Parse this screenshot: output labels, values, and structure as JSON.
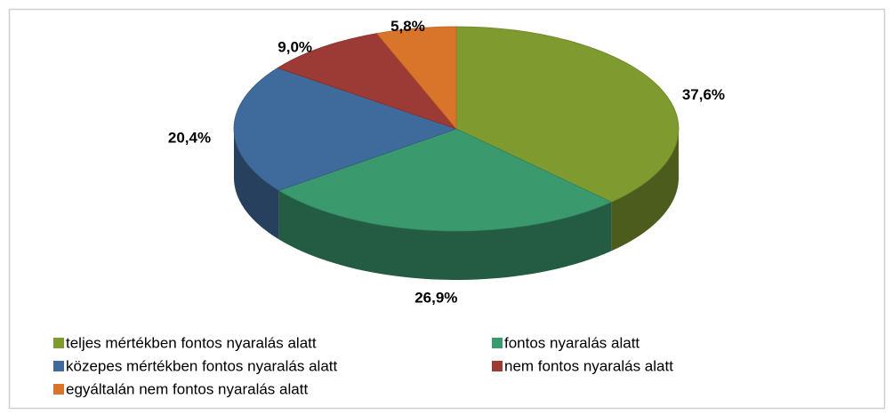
{
  "chart_data": {
    "type": "pie",
    "categories": [
      "teljes mértékben fontos nyaralás alatt",
      "fontos nyaralás alatt",
      "közepes mértékben fontos nyaralás alatt",
      "nem fontos nyaralás alatt",
      "egyáltalán nem fontos nyaralás alatt"
    ],
    "values": [
      37.6,
      26.9,
      20.4,
      9.0,
      5.8
    ],
    "value_labels": [
      "37,6%",
      "26,9%",
      "20,4%",
      "9,0%",
      "5,8%"
    ],
    "colors": [
      "#7f9a2e",
      "#3a9a6e",
      "#3f6b9c",
      "#9c3a35",
      "#d9742b"
    ],
    "legend": "bottom"
  }
}
